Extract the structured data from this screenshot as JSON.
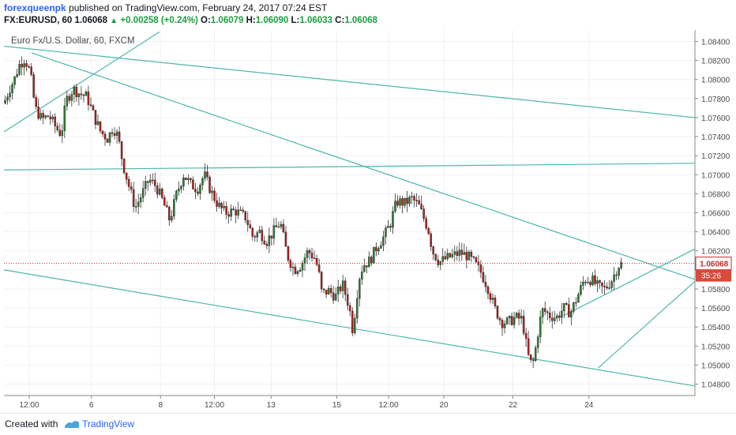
{
  "header": {
    "author": "forexqueenpk",
    "published_text": "published on TradingView.com, February 24, 2017 07:24 EST",
    "symbol_tf": "FX:EURUSD, 60",
    "last": "1.06068",
    "change": "+0.00258 (+0.24%)",
    "o_label": "O:",
    "o_value": "1.06079",
    "h_label": "H:",
    "h_value": "1.06090",
    "l_label": "L:",
    "l_value": "1.06033",
    "c_label": "C:",
    "c_value": "1.06068"
  },
  "chart_data": {
    "type": "candlestick",
    "title": "Euro Fx/U.S. Dollar, 60, FXCM",
    "ylim": [
      1.0468,
      1.0852
    ],
    "y_ticks": [
      "1.08400",
      "1.08200",
      "1.08000",
      "1.07800",
      "1.07600",
      "1.07400",
      "1.07200",
      "1.07000",
      "1.06800",
      "1.06600",
      "1.06400",
      "1.06200",
      "1.06000",
      "1.05800",
      "1.05600",
      "1.05400",
      "1.05200",
      "1.05000",
      "1.04800"
    ],
    "x_ticks": [
      "12:00",
      "6",
      "8",
      "12:00",
      "13",
      "15",
      "12:00",
      "20",
      "22",
      "24"
    ],
    "x_tick_pos": [
      0.0,
      0.09,
      0.19,
      0.268,
      0.35,
      0.445,
      0.52,
      0.6,
      0.7,
      0.81
    ],
    "last_price_label": "1.06068",
    "last_price": 1.06068,
    "countdown": "35:26",
    "candle_colors": {
      "up": "#2e7d32",
      "down": "#b71c1c"
    },
    "trendline_color": "#4db6ac",
    "grid": true,
    "price_path": [
      [
        0.0,
        1.0775
      ],
      [
        0.008,
        1.079
      ],
      [
        0.015,
        1.08
      ],
      [
        0.022,
        1.0815
      ],
      [
        0.03,
        1.0822
      ],
      [
        0.038,
        1.0808
      ],
      [
        0.045,
        1.077
      ],
      [
        0.055,
        1.0758
      ],
      [
        0.065,
        1.0762
      ],
      [
        0.075,
        1.075
      ],
      [
        0.083,
        1.0742
      ],
      [
        0.09,
        1.0778
      ],
      [
        0.1,
        1.079
      ],
      [
        0.11,
        1.0785
      ],
      [
        0.12,
        1.0782
      ],
      [
        0.13,
        1.0762
      ],
      [
        0.14,
        1.0745
      ],
      [
        0.15,
        1.0738
      ],
      [
        0.158,
        1.075
      ],
      [
        0.165,
        1.074
      ],
      [
        0.172,
        1.0712
      ],
      [
        0.18,
        1.069
      ],
      [
        0.19,
        1.0665
      ],
      [
        0.2,
        1.068
      ],
      [
        0.21,
        1.0695
      ],
      [
        0.22,
        1.0688
      ],
      [
        0.23,
        1.0672
      ],
      [
        0.24,
        1.0652
      ],
      [
        0.25,
        1.068
      ],
      [
        0.26,
        1.07
      ],
      [
        0.27,
        1.069
      ],
      [
        0.28,
        1.0685
      ],
      [
        0.29,
        1.07
      ],
      [
        0.3,
        1.0682
      ],
      [
        0.31,
        1.0668
      ],
      [
        0.32,
        1.066
      ],
      [
        0.335,
        1.0662
      ],
      [
        0.35,
        1.0655
      ],
      [
        0.36,
        1.0635
      ],
      [
        0.37,
        1.064
      ],
      [
        0.38,
        1.063
      ],
      [
        0.39,
        1.064
      ],
      [
        0.4,
        1.065
      ],
      [
        0.41,
        1.0615
      ],
      [
        0.42,
        1.06
      ],
      [
        0.43,
        1.0605
      ],
      [
        0.44,
        1.062
      ],
      [
        0.45,
        1.0612
      ],
      [
        0.455,
        1.06
      ],
      [
        0.46,
        1.0575
      ],
      [
        0.47,
        1.0578
      ],
      [
        0.48,
        1.0572
      ],
      [
        0.49,
        1.0585
      ],
      [
        0.5,
        1.056
      ],
      [
        0.505,
        1.0535
      ],
      [
        0.51,
        1.057
      ],
      [
        0.515,
        1.0595
      ],
      [
        0.52,
        1.0605
      ],
      [
        0.53,
        1.061
      ],
      [
        0.54,
        1.0625
      ],
      [
        0.55,
        1.0635
      ],
      [
        0.56,
        1.065
      ],
      [
        0.565,
        1.0665
      ],
      [
        0.57,
        1.0672
      ],
      [
        0.58,
        1.067
      ],
      [
        0.59,
        1.0675
      ],
      [
        0.6,
        1.0668
      ],
      [
        0.61,
        1.065
      ],
      [
        0.615,
        1.064
      ],
      [
        0.62,
        1.062
      ],
      [
        0.63,
        1.0608
      ],
      [
        0.64,
        1.0612
      ],
      [
        0.65,
        1.0615
      ],
      [
        0.66,
        1.0618
      ],
      [
        0.67,
        1.0615
      ],
      [
        0.68,
        1.0608
      ],
      [
        0.69,
        1.0598
      ],
      [
        0.7,
        1.0582
      ],
      [
        0.71,
        1.056
      ],
      [
        0.72,
        1.0545
      ],
      [
        0.73,
        1.0545
      ],
      [
        0.74,
        1.055
      ],
      [
        0.75,
        1.0548
      ],
      [
        0.755,
        1.0525
      ],
      [
        0.76,
        1.0505
      ],
      [
        0.765,
        1.05
      ],
      [
        0.77,
        1.052
      ],
      [
        0.775,
        1.0545
      ],
      [
        0.78,
        1.0558
      ],
      [
        0.79,
        1.0552
      ],
      [
        0.8,
        1.055
      ],
      [
        0.81,
        1.056
      ],
      [
        0.82,
        1.0555
      ],
      [
        0.83,
        1.0572
      ],
      [
        0.84,
        1.059
      ],
      [
        0.85,
        1.059
      ],
      [
        0.86,
        1.0582
      ],
      [
        0.87,
        1.058
      ],
      [
        0.88,
        1.059
      ],
      [
        0.885,
        1.0598
      ],
      [
        0.89,
        1.0605
      ],
      [
        0.895,
        1.0607
      ]
    ],
    "trendlines": [
      {
        "from": [
          0.0,
          1.0745
        ],
        "to": [
          0.225,
          1.085
        ]
      },
      {
        "from": [
          0.0,
          1.0835
        ],
        "to": [
          1.0,
          1.076
        ]
      },
      {
        "from": [
          0.04,
          1.0828
        ],
        "to": [
          1.0,
          1.059
        ]
      },
      {
        "from": [
          0.0,
          1.0705
        ],
        "to": [
          1.0,
          1.0712
        ]
      },
      {
        "from": [
          0.0,
          1.06
        ],
        "to": [
          1.0,
          1.0478
        ]
      },
      {
        "from": [
          0.81,
          1.0552
        ],
        "to": [
          1.0,
          1.0622
        ]
      },
      {
        "from": [
          0.86,
          1.0497
        ],
        "to": [
          1.0,
          1.0588
        ]
      }
    ]
  },
  "footer": {
    "created_with": "Created with",
    "brand": "TradingView"
  }
}
